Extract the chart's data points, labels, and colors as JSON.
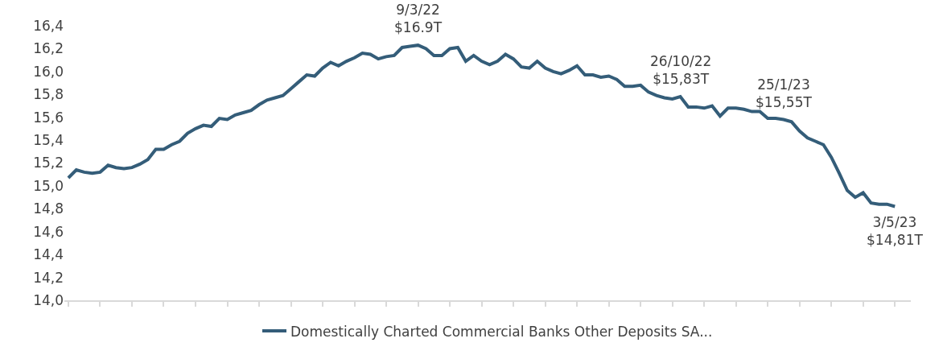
{
  "chart_data": {
    "type": "line",
    "categories": [
      null,
      null,
      null,
      null,
      null,
      null,
      null,
      null,
      null,
      null,
      null,
      null,
      null,
      null,
      null,
      null,
      null,
      null,
      null,
      null,
      null,
      null,
      null,
      null,
      null,
      null,
      null,
      null,
      null,
      null,
      null,
      null,
      null,
      null,
      null,
      null,
      null,
      null,
      null,
      null,
      null,
      null,
      null,
      null,
      null,
      null,
      null,
      null,
      null,
      null,
      null,
      null,
      null,
      null,
      null,
      null,
      null,
      null,
      null,
      null,
      null,
      null,
      null,
      null,
      null,
      null,
      null,
      null,
      null,
      null,
      null,
      null,
      null,
      null,
      null,
      null,
      null,
      null,
      null,
      null,
      null,
      null,
      null,
      null,
      null,
      null,
      null,
      null,
      null,
      null,
      null,
      null,
      null,
      null,
      null,
      null,
      null,
      null,
      null,
      null,
      null,
      null,
      null,
      null,
      null
    ],
    "series": [
      {
        "name": "Domestically Charted Commercial Banks Other Deposits SA...",
        "color": "#345d79",
        "values": [
          15.07,
          15.14,
          15.12,
          15.11,
          15.12,
          15.18,
          15.16,
          15.15,
          15.16,
          15.19,
          15.23,
          15.32,
          15.32,
          15.36,
          15.39,
          15.46,
          15.5,
          15.53,
          15.52,
          15.59,
          15.58,
          15.62,
          15.64,
          15.66,
          15.71,
          15.75,
          15.77,
          15.79,
          15.85,
          15.91,
          15.97,
          15.96,
          16.03,
          16.08,
          16.05,
          16.09,
          16.12,
          16.16,
          16.15,
          16.11,
          16.13,
          16.14,
          16.21,
          16.22,
          16.23,
          16.2,
          16.14,
          16.14,
          16.2,
          16.21,
          16.09,
          16.14,
          16.09,
          16.06,
          16.09,
          16.15,
          16.11,
          16.04,
          16.03,
          16.09,
          16.03,
          16.0,
          15.98,
          16.01,
          16.05,
          15.97,
          15.97,
          15.95,
          15.96,
          15.93,
          15.87,
          15.87,
          15.88,
          15.82,
          15.79,
          15.77,
          15.76,
          15.78,
          15.69,
          15.69,
          15.68,
          15.7,
          15.61,
          15.68,
          15.68,
          15.67,
          15.65,
          15.65,
          15.59,
          15.59,
          15.58,
          15.56,
          15.48,
          15.42,
          15.39,
          15.36,
          15.25,
          15.11,
          14.96,
          14.9,
          14.94,
          14.85,
          14.84,
          14.84,
          14.82
        ]
      }
    ],
    "ylim": [
      14.0,
      16.4
    ],
    "yticks": [
      {
        "value": 14.0,
        "label": "14,0"
      },
      {
        "value": 14.2,
        "label": "14,2"
      },
      {
        "value": 14.4,
        "label": "14,4"
      },
      {
        "value": 14.6,
        "label": "14,6"
      },
      {
        "value": 14.8,
        "label": "14,8"
      },
      {
        "value": 15.0,
        "label": "15,0"
      },
      {
        "value": 15.2,
        "label": "15,2"
      },
      {
        "value": 15.4,
        "label": "15,4"
      },
      {
        "value": 15.6,
        "label": "15,6"
      },
      {
        "value": 15.8,
        "label": "15,8"
      },
      {
        "value": 16.0,
        "label": "16,0"
      },
      {
        "value": 16.2,
        "label": "16,2"
      },
      {
        "value": 16.4,
        "label": "16,4"
      }
    ],
    "annotations": [
      {
        "text": "9/3/22\n$16.9T",
        "y": 16.23
      },
      {
        "text": "26/10/22\n$15,83T",
        "y": 15.78
      },
      {
        "text": "25/1/23\n$15,55T",
        "y": 15.58
      },
      {
        "text": "3/5/23\n$14,81T",
        "y": 14.82
      }
    ],
    "legend": "bottom",
    "marker": "none",
    "line_style": "solid"
  }
}
